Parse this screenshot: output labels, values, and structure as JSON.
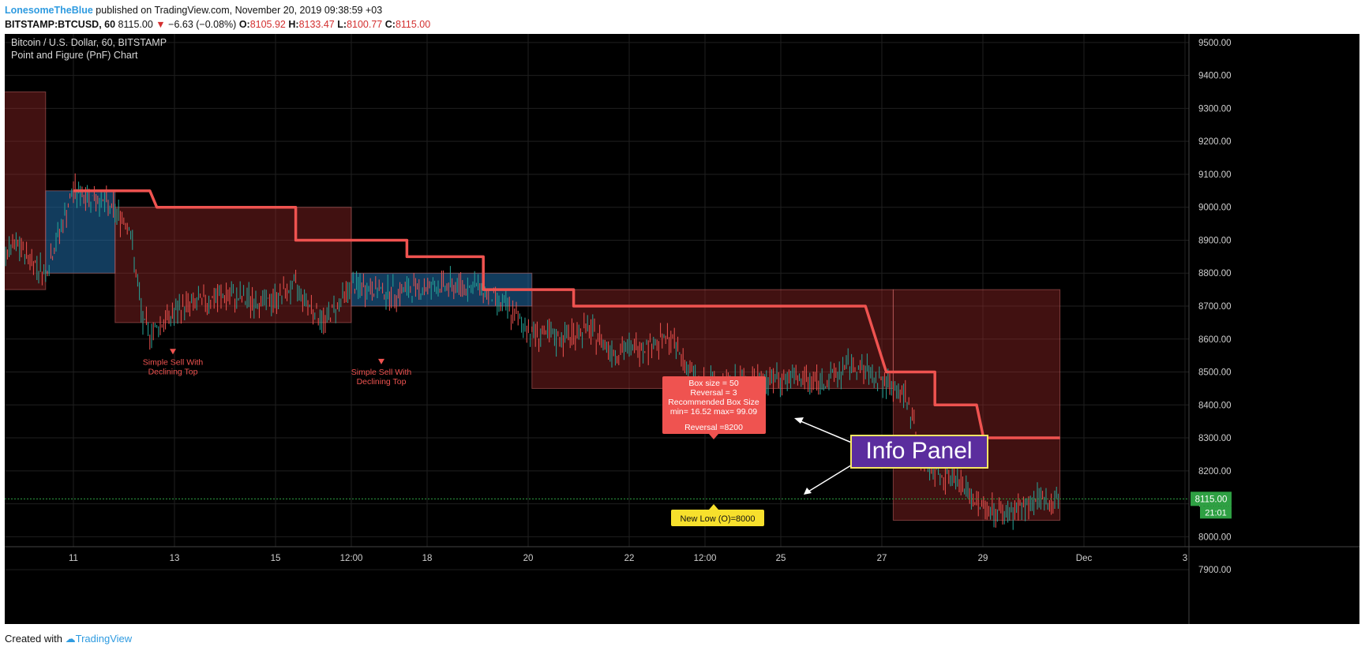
{
  "header": {
    "author": "LonesomeTheBlue",
    "published": " published on TradingView.com, November 20, 2019 09:38:59 +03",
    "symbol": "BITSTAMP:BTCUSD, 60",
    "last": "8115.00",
    "change": "−6.63 (−0.08%)",
    "o_label": "O:",
    "o": "8105.92",
    "h_label": "H:",
    "h": "8133.47",
    "l_label": "L:",
    "l": "8100.77",
    "c_label": "C:",
    "c": "8115.00"
  },
  "legend": {
    "title": "Bitcoin / U.S. Dollar, 60, BITSTAMP",
    "indicator": "Point and Figure (PnF) Chart"
  },
  "footer": {
    "created": "Created with",
    "brand": "TradingView"
  },
  "colors": {
    "background": "#000000",
    "pnf_line": "#ef5350",
    "up_candle": "#26a69a",
    "down_candle": "#ef5350",
    "price_label": "#2ea043",
    "info_panel_bg": "#5b2d9e",
    "info_panel_border": "#f5e663",
    "low_label_bg": "#f7e02c"
  },
  "chart_data": {
    "type": "line",
    "title": "Bitcoin / U.S. Dollar, 60, BITSTAMP",
    "ylim": [
      7850,
      9550
    ],
    "y_ticks": [
      "9500.00",
      "9400.00",
      "9300.00",
      "9200.00",
      "9100.00",
      "9000.00",
      "8900.00",
      "8800.00",
      "8700.00",
      "8600.00",
      "8500.00",
      "8400.00",
      "8300.00",
      "8200.00",
      "8100.00",
      "8000.00",
      "7900.00"
    ],
    "x_ticks": [
      "11",
      "13",
      "15",
      "12:00",
      "18",
      "20",
      "22",
      "12:00",
      "25",
      "27",
      "29",
      "Dec",
      "3"
    ],
    "current_price": "8115.00",
    "countdown": "21:01",
    "pnf_line": [
      {
        "x": 0,
        "y": 9050
      },
      {
        "x": 0.55,
        "y": 9050
      },
      {
        "x": 0.6,
        "y": 9000
      },
      {
        "x": 1.6,
        "y": 9000
      },
      {
        "x": 1.6,
        "y": 8900
      },
      {
        "x": 2.4,
        "y": 8900
      },
      {
        "x": 2.4,
        "y": 8850
      },
      {
        "x": 2.95,
        "y": 8850
      },
      {
        "x": 2.95,
        "y": 8750
      },
      {
        "x": 3.6,
        "y": 8750
      },
      {
        "x": 3.6,
        "y": 8700
      },
      {
        "x": 5.7,
        "y": 8700
      },
      {
        "x": 5.85,
        "y": 8500
      },
      {
        "x": 6.2,
        "y": 8500
      },
      {
        "x": 6.2,
        "y": 8400
      },
      {
        "x": 6.5,
        "y": 8400
      },
      {
        "x": 6.55,
        "y": 8300
      },
      {
        "x": 7.1,
        "y": 8300
      }
    ],
    "boxes": [
      {
        "x0": -1.3,
        "x1": -0.2,
        "y0": 8750,
        "y1": 9350,
        "kind": "down"
      },
      {
        "x0": -0.2,
        "x1": 0.3,
        "y0": 8800,
        "y1": 9050,
        "kind": "up"
      },
      {
        "x0": 0.3,
        "x1": 2.0,
        "y0": 8650,
        "y1": 9000,
        "kind": "down"
      },
      {
        "x0": 2.0,
        "x1": 3.3,
        "y0": 8700,
        "y1": 8800,
        "kind": "up"
      },
      {
        "x0": 3.3,
        "x1": 5.9,
        "y0": 8450,
        "y1": 8750,
        "kind": "down"
      },
      {
        "x0": 5.9,
        "x1": 7.1,
        "y0": 8050,
        "y1": 8750,
        "kind": "down"
      }
    ],
    "price_series": [
      {
        "x": -1.3,
        "y": 8850
      },
      {
        "x": -1.0,
        "y": 8780
      },
      {
        "x": -0.7,
        "y": 8820
      },
      {
        "x": -0.4,
        "y": 8880
      },
      {
        "x": -0.2,
        "y": 8800
      },
      {
        "x": 0,
        "y": 9050
      },
      {
        "x": 0.2,
        "y": 9020
      },
      {
        "x": 0.4,
        "y": 8950
      },
      {
        "x": 0.5,
        "y": 8650
      },
      {
        "x": 0.55,
        "y": 8620
      },
      {
        "x": 0.8,
        "y": 8700
      },
      {
        "x": 1.1,
        "y": 8730
      },
      {
        "x": 1.4,
        "y": 8710
      },
      {
        "x": 1.6,
        "y": 8760
      },
      {
        "x": 1.8,
        "y": 8650
      },
      {
        "x": 2.0,
        "y": 8760
      },
      {
        "x": 2.3,
        "y": 8740
      },
      {
        "x": 2.6,
        "y": 8760
      },
      {
        "x": 2.9,
        "y": 8760
      },
      {
        "x": 3.1,
        "y": 8700
      },
      {
        "x": 3.3,
        "y": 8620
      },
      {
        "x": 3.5,
        "y": 8600
      },
      {
        "x": 3.7,
        "y": 8630
      },
      {
        "x": 3.9,
        "y": 8560
      },
      {
        "x": 4.1,
        "y": 8580
      },
      {
        "x": 4.3,
        "y": 8600
      },
      {
        "x": 4.5,
        "y": 8460
      },
      {
        "x": 4.8,
        "y": 8470
      },
      {
        "x": 5.1,
        "y": 8480
      },
      {
        "x": 5.4,
        "y": 8470
      },
      {
        "x": 5.6,
        "y": 8520
      },
      {
        "x": 5.8,
        "y": 8480
      },
      {
        "x": 6.0,
        "y": 8420
      },
      {
        "x": 6.1,
        "y": 8250
      },
      {
        "x": 6.2,
        "y": 8200
      },
      {
        "x": 6.35,
        "y": 8180
      },
      {
        "x": 6.5,
        "y": 8100
      },
      {
        "x": 6.7,
        "y": 8070
      },
      {
        "x": 6.9,
        "y": 8100
      },
      {
        "x": 7.1,
        "y": 8115
      }
    ],
    "annotations": [
      {
        "line1": "Simple Sell With",
        "line2": "Declining Top",
        "x": 0.5,
        "price": 8570
      },
      {
        "line1": "Simple Sell With",
        "line2": "Declining Top",
        "x": 2.0,
        "price": 8540
      }
    ]
  },
  "info_box": {
    "line1": "Box size = 50",
    "line2": "Reversal = 3",
    "line3": "Recommended Box Size",
    "line4": "min= 16.52 max= 99.09",
    "line5": "Reversal =8200"
  },
  "new_low_label": "New Low (O)=8000",
  "info_panel_label": "Info Panel"
}
